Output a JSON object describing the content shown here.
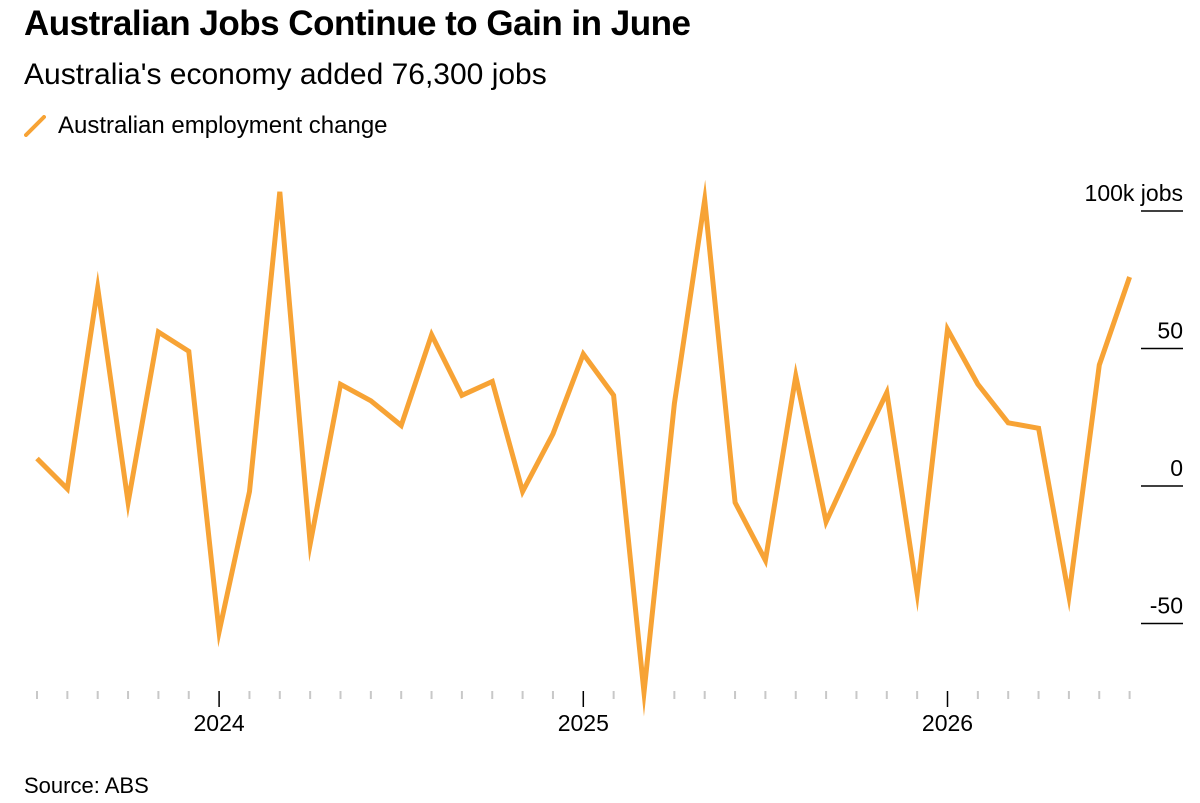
{
  "header": {
    "title": "Australian Jobs Continue to Gain in June",
    "subtitle": "Australia's economy added 76,300 jobs"
  },
  "legend": {
    "label": "Australian employment change",
    "color": "#f7a335",
    "icon": "line-swatch-icon"
  },
  "source": "Source: ABS",
  "chart_data": {
    "type": "line",
    "title": "Australian Jobs Continue to Gain in June",
    "subtitle": "Australia's economy added 76,300 jobs",
    "xlabel": "",
    "ylabel": "",
    "ylim": [
      -75,
      105
    ],
    "grid": false,
    "legend_position": "top-left",
    "y_ticks": [
      {
        "value": 100,
        "label": "100k jobs"
      },
      {
        "value": 50,
        "label": "50"
      },
      {
        "value": 0,
        "label": "0"
      },
      {
        "value": -50,
        "label": "-50"
      }
    ],
    "x_labels": [
      {
        "month": "2024-01",
        "label": "2024"
      },
      {
        "month": "2025-01",
        "label": "2025"
      },
      {
        "month": "2026-01",
        "label": "2026"
      }
    ],
    "x": [
      "2023-07",
      "2023-08",
      "2023-09",
      "2023-10",
      "2023-11",
      "2023-12",
      "2024-01",
      "2024-02",
      "2024-03",
      "2024-04",
      "2024-05",
      "2024-06",
      "2024-07",
      "2024-08",
      "2024-09",
      "2024-10",
      "2024-11",
      "2024-12",
      "2025-01",
      "2025-02",
      "2025-03",
      "2025-04",
      "2025-05",
      "2025-06",
      "2025-07",
      "2025-08",
      "2025-09",
      "2025-10",
      "2025-11",
      "2025-12",
      "2026-01",
      "2026-02",
      "2026-03",
      "2026-04",
      "2026-05",
      "2026-06",
      "2026-07"
    ],
    "series": [
      {
        "name": "Australian employment change",
        "color": "#f7a335",
        "values": [
          10,
          -1,
          72,
          -6,
          56,
          49,
          -53,
          -2,
          107,
          -21,
          37,
          31,
          22,
          55,
          33,
          38,
          -2,
          19,
          48,
          33,
          -75,
          30,
          104,
          -6,
          -27,
          40,
          -13,
          11,
          34,
          -39,
          57,
          37,
          23,
          21,
          -40,
          44,
          76
        ]
      }
    ]
  }
}
